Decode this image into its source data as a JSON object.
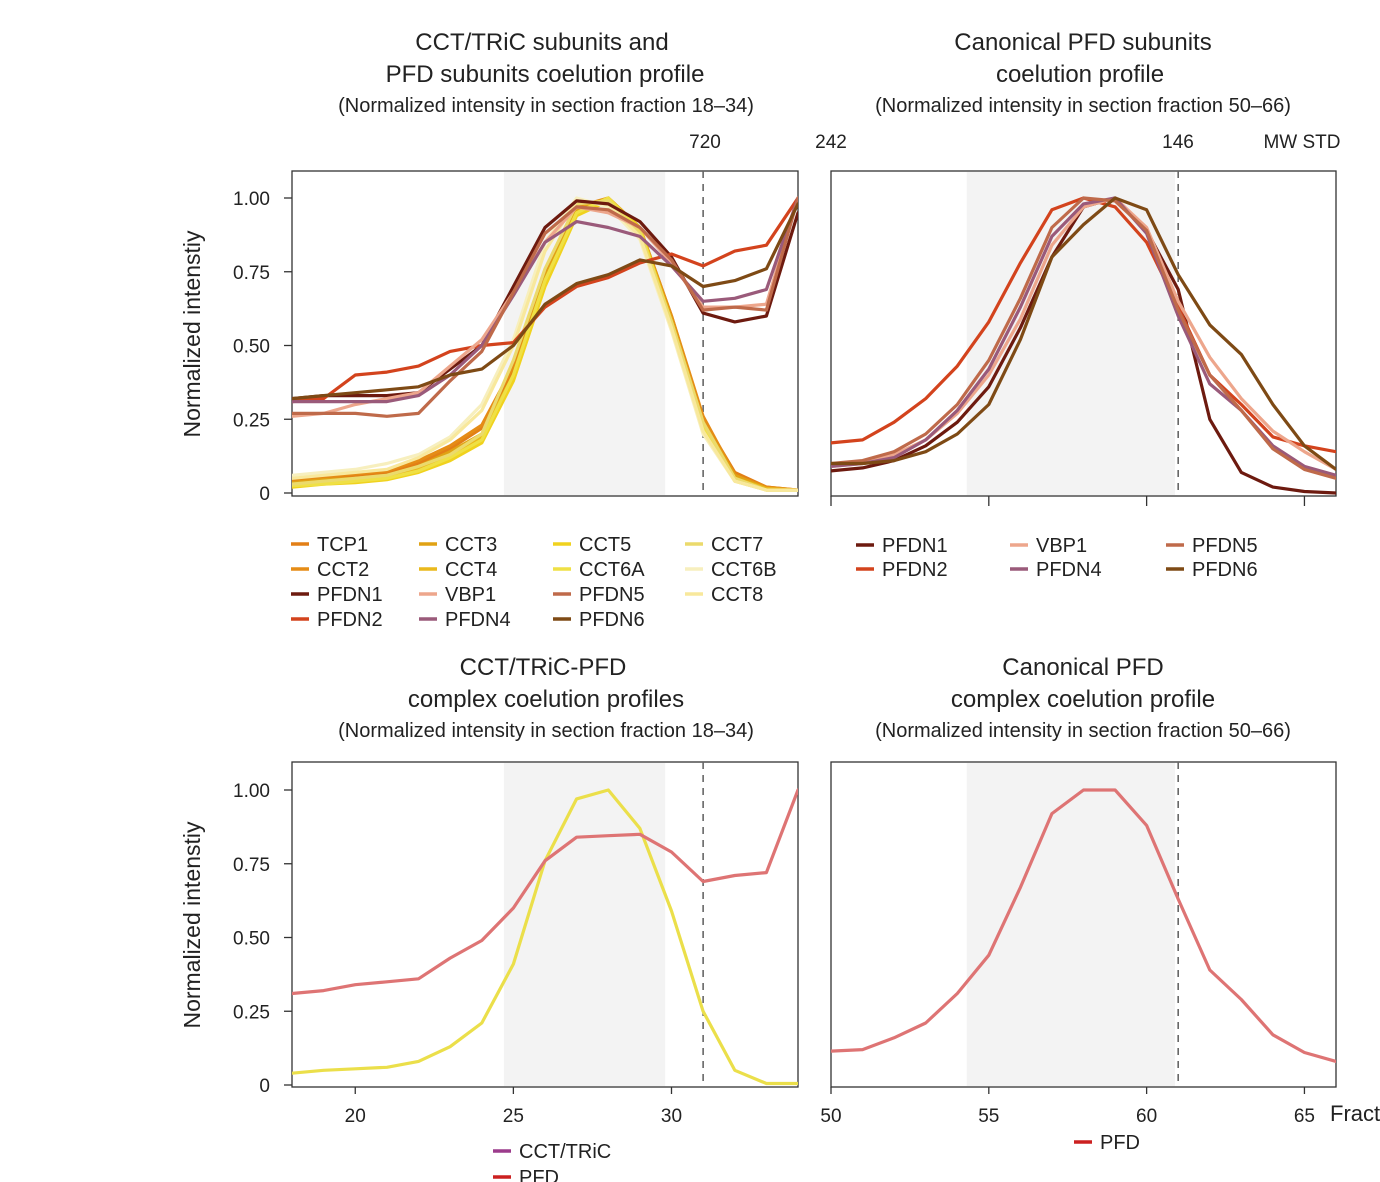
{
  "chart_data": [
    {
      "id": "tl",
      "type": "line",
      "title_lines": [
        "CCT/TRiC subunits and",
        "PFD subunits coelution profile"
      ],
      "subtitle": "(Normalized intensity in section fraction 18–34)",
      "ylabel": "Normalized intenstiy",
      "xlim": [
        18,
        34
      ],
      "ylim": [
        0,
        1.1
      ],
      "yticks": [
        0,
        0.25,
        0.5,
        0.75,
        1.0
      ],
      "ytick_labels": [
        "0",
        "0.25",
        "0.50",
        "0.75",
        "1.00"
      ],
      "shaded": [
        24.7,
        29.8
      ],
      "dashed_x": 31,
      "mw_labels": [
        {
          "x": 31,
          "label": "720"
        }
      ],
      "x": [
        18,
        19,
        20,
        21,
        22,
        23,
        24,
        25,
        26,
        27,
        28,
        29,
        30,
        31,
        32,
        33,
        34
      ],
      "series": [
        {
          "name": "TCP1",
          "color": "#e27f16",
          "values": [
            0.04,
            0.05,
            0.06,
            0.07,
            0.1,
            0.15,
            0.22,
            0.42,
            0.74,
            0.96,
            1.0,
            0.9,
            0.6,
            0.25,
            0.07,
            0.02,
            0.01
          ]
        },
        {
          "name": "CCT2",
          "color": "#e58c16",
          "values": [
            0.045,
            0.055,
            0.065,
            0.075,
            0.11,
            0.16,
            0.23,
            0.43,
            0.75,
            0.97,
            1.0,
            0.9,
            0.6,
            0.26,
            0.06,
            0.02,
            0.01
          ]
        },
        {
          "name": "CCT3",
          "color": "#e0a214",
          "values": [
            0.035,
            0.045,
            0.05,
            0.06,
            0.09,
            0.14,
            0.2,
            0.4,
            0.73,
            0.96,
            1.0,
            0.9,
            0.59,
            0.24,
            0.06,
            0.015,
            0.01
          ]
        },
        {
          "name": "CCT4",
          "color": "#eab91c",
          "values": [
            0.03,
            0.04,
            0.045,
            0.055,
            0.085,
            0.13,
            0.19,
            0.4,
            0.72,
            0.95,
            1.0,
            0.9,
            0.58,
            0.23,
            0.05,
            0.015,
            0.01
          ]
        },
        {
          "name": "CCT5",
          "color": "#f0d21e",
          "values": [
            0.02,
            0.03,
            0.035,
            0.045,
            0.07,
            0.11,
            0.17,
            0.38,
            0.7,
            0.94,
            0.99,
            0.9,
            0.57,
            0.22,
            0.04,
            0.01,
            0.01
          ]
        },
        {
          "name": "CCT6A",
          "color": "#efe045",
          "values": [
            0.025,
            0.03,
            0.04,
            0.05,
            0.075,
            0.12,
            0.18,
            0.4,
            0.72,
            0.95,
            1.0,
            0.89,
            0.58,
            0.23,
            0.05,
            0.01,
            0.01
          ]
        },
        {
          "name": "CCT7",
          "color": "#ebda6c",
          "values": [
            0.03,
            0.04,
            0.05,
            0.06,
            0.09,
            0.13,
            0.2,
            0.45,
            0.76,
            0.98,
            0.99,
            0.88,
            0.58,
            0.24,
            0.05,
            0.01,
            0.01
          ]
        },
        {
          "name": "CCT6B",
          "color": "#f7efbe",
          "values": [
            0.06,
            0.07,
            0.08,
            0.1,
            0.13,
            0.19,
            0.3,
            0.52,
            0.85,
            1.0,
            0.97,
            0.86,
            0.55,
            0.2,
            0.04,
            0.01,
            0.01
          ]
        },
        {
          "name": "CCT8",
          "color": "#f8e89c",
          "values": [
            0.05,
            0.06,
            0.07,
            0.08,
            0.12,
            0.18,
            0.28,
            0.5,
            0.82,
            0.99,
            0.98,
            0.87,
            0.56,
            0.21,
            0.04,
            0.01,
            0.01
          ]
        },
        {
          "name": "PFDN1",
          "color": "#6d1a0f",
          "values": [
            0.32,
            0.33,
            0.33,
            0.33,
            0.34,
            0.42,
            0.5,
            0.7,
            0.9,
            0.99,
            0.98,
            0.92,
            0.8,
            0.61,
            0.58,
            0.6,
            0.95
          ]
        },
        {
          "name": "PFDN2",
          "color": "#d3431d",
          "values": [
            0.31,
            0.32,
            0.4,
            0.41,
            0.43,
            0.48,
            0.5,
            0.51,
            0.63,
            0.7,
            0.73,
            0.78,
            0.81,
            0.77,
            0.82,
            0.84,
            1.0
          ]
        },
        {
          "name": "VBP1",
          "color": "#eda68c",
          "values": [
            0.26,
            0.27,
            0.3,
            0.32,
            0.34,
            0.43,
            0.52,
            0.68,
            0.85,
            0.97,
            0.95,
            0.9,
            0.78,
            0.63,
            0.63,
            0.64,
            1.0
          ]
        },
        {
          "name": "PFDN4",
          "color": "#9a5a7a",
          "values": [
            0.31,
            0.31,
            0.31,
            0.31,
            0.33,
            0.4,
            0.5,
            0.67,
            0.85,
            0.92,
            0.9,
            0.87,
            0.77,
            0.65,
            0.66,
            0.69,
            1.0
          ]
        },
        {
          "name": "PFDN5",
          "color": "#bf6a4a",
          "values": [
            0.27,
            0.27,
            0.27,
            0.26,
            0.27,
            0.38,
            0.48,
            0.68,
            0.88,
            0.97,
            0.96,
            0.9,
            0.79,
            0.62,
            0.63,
            0.62,
            1.0
          ]
        },
        {
          "name": "PFDN6",
          "color": "#7e4a15",
          "values": [
            0.32,
            0.33,
            0.34,
            0.35,
            0.36,
            0.4,
            0.42,
            0.5,
            0.64,
            0.71,
            0.74,
            0.79,
            0.77,
            0.7,
            0.72,
            0.76,
            0.98
          ]
        }
      ]
    },
    {
      "id": "tr",
      "type": "line",
      "title_lines": [
        "Canonical PFD subunits",
        "coelution profile"
      ],
      "subtitle": "(Normalized intensity in section fraction 50–66)",
      "xlim": [
        50,
        66
      ],
      "ylim": [
        0,
        1.1
      ],
      "shaded": [
        54.3,
        60.9
      ],
      "dashed_x": 61,
      "mw_labels": [
        {
          "x": 50,
          "label": "242"
        },
        {
          "x": 61,
          "label": "146"
        }
      ],
      "mw_std": "MW STD",
      "x": [
        50,
        51,
        52,
        53,
        54,
        55,
        56,
        57,
        58,
        59,
        60,
        61,
        62,
        63,
        64,
        65,
        66
      ],
      "series": [
        {
          "name": "PFDN1",
          "color": "#6d1a0f",
          "values": [
            0.075,
            0.085,
            0.11,
            0.16,
            0.24,
            0.36,
            0.56,
            0.8,
            0.97,
            1.0,
            0.89,
            0.69,
            0.25,
            0.07,
            0.02,
            0.005,
            0.0
          ]
        },
        {
          "name": "PFDN2",
          "color": "#d3431d",
          "values": [
            0.17,
            0.18,
            0.24,
            0.32,
            0.43,
            0.58,
            0.78,
            0.96,
            1.0,
            0.97,
            0.85,
            0.63,
            0.4,
            0.3,
            0.19,
            0.16,
            0.14
          ]
        },
        {
          "name": "VBP1",
          "color": "#eda68c",
          "values": [
            0.09,
            0.1,
            0.13,
            0.18,
            0.27,
            0.4,
            0.59,
            0.84,
            0.97,
            1.0,
            0.9,
            0.65,
            0.46,
            0.32,
            0.21,
            0.14,
            0.08
          ]
        },
        {
          "name": "PFDN4",
          "color": "#9a5a7a",
          "values": [
            0.09,
            0.1,
            0.12,
            0.18,
            0.28,
            0.42,
            0.63,
            0.87,
            0.98,
            1.0,
            0.88,
            0.6,
            0.37,
            0.28,
            0.16,
            0.09,
            0.06
          ]
        },
        {
          "name": "PFDN5",
          "color": "#bf6a4a",
          "values": [
            0.1,
            0.11,
            0.14,
            0.2,
            0.3,
            0.45,
            0.66,
            0.9,
            1.0,
            0.99,
            0.89,
            0.62,
            0.4,
            0.28,
            0.15,
            0.08,
            0.05
          ]
        },
        {
          "name": "PFDN6",
          "color": "#7e4a15",
          "values": [
            0.1,
            0.1,
            0.11,
            0.14,
            0.2,
            0.3,
            0.52,
            0.8,
            0.91,
            1.0,
            0.96,
            0.74,
            0.57,
            0.47,
            0.3,
            0.16,
            0.08
          ]
        }
      ]
    },
    {
      "id": "bl",
      "type": "line",
      "title_lines": [
        "CCT/TRiC-PFD",
        "complex coelution profiles"
      ],
      "subtitle": "(Normalized intensity in section fraction 18–34)",
      "ylabel": "Normalized intenstiy",
      "xlim": [
        18,
        34
      ],
      "ylim": [
        0,
        1.1
      ],
      "yticks": [
        0,
        0.25,
        0.5,
        0.75,
        1.0
      ],
      "ytick_labels": [
        "0",
        "0.25",
        "0.50",
        "0.75",
        "1.00"
      ],
      "xticks": [
        20,
        25,
        30
      ],
      "shaded": [
        24.7,
        29.8
      ],
      "dashed_x": 31,
      "x": [
        18,
        19,
        20,
        21,
        22,
        23,
        24,
        25,
        26,
        27,
        28,
        29,
        30,
        31,
        32,
        33,
        34
      ],
      "series": [
        {
          "name": "CCT/TRiC",
          "color": "#ebdf4a",
          "legend_color": "#9c3c8c",
          "values": [
            0.04,
            0.05,
            0.055,
            0.06,
            0.08,
            0.13,
            0.21,
            0.41,
            0.76,
            0.97,
            1.0,
            0.87,
            0.59,
            0.25,
            0.05,
            0.005,
            0.005
          ]
        },
        {
          "name": "PFD",
          "color": "#de7474",
          "legend_color": "#cc2020",
          "values": [
            0.31,
            0.32,
            0.34,
            0.35,
            0.36,
            0.43,
            0.49,
            0.6,
            0.76,
            0.84,
            0.845,
            0.85,
            0.79,
            0.69,
            0.71,
            0.72,
            1.0
          ]
        }
      ]
    },
    {
      "id": "br",
      "type": "line",
      "title_lines": [
        "Canonical PFD",
        "complex coelution profile"
      ],
      "subtitle": "(Normalized intensity in section fraction 50–66)",
      "xlim": [
        50,
        66
      ],
      "ylim": [
        0,
        1.1
      ],
      "xticks": [
        50,
        55,
        60,
        65
      ],
      "xlabel": "Fraction",
      "shaded": [
        54.3,
        60.9
      ],
      "dashed_x": 61,
      "x": [
        50,
        51,
        52,
        53,
        54,
        55,
        56,
        57,
        58,
        59,
        60,
        61,
        62,
        63,
        64,
        65,
        66
      ],
      "series": [
        {
          "name": "PFD",
          "color": "#de7474",
          "legend_color": "#cc2020",
          "values": [
            0.115,
            0.12,
            0.16,
            0.21,
            0.31,
            0.44,
            0.67,
            0.92,
            1.0,
            1.0,
            0.88,
            0.63,
            0.39,
            0.29,
            0.17,
            0.11,
            0.08
          ]
        }
      ]
    }
  ]
}
